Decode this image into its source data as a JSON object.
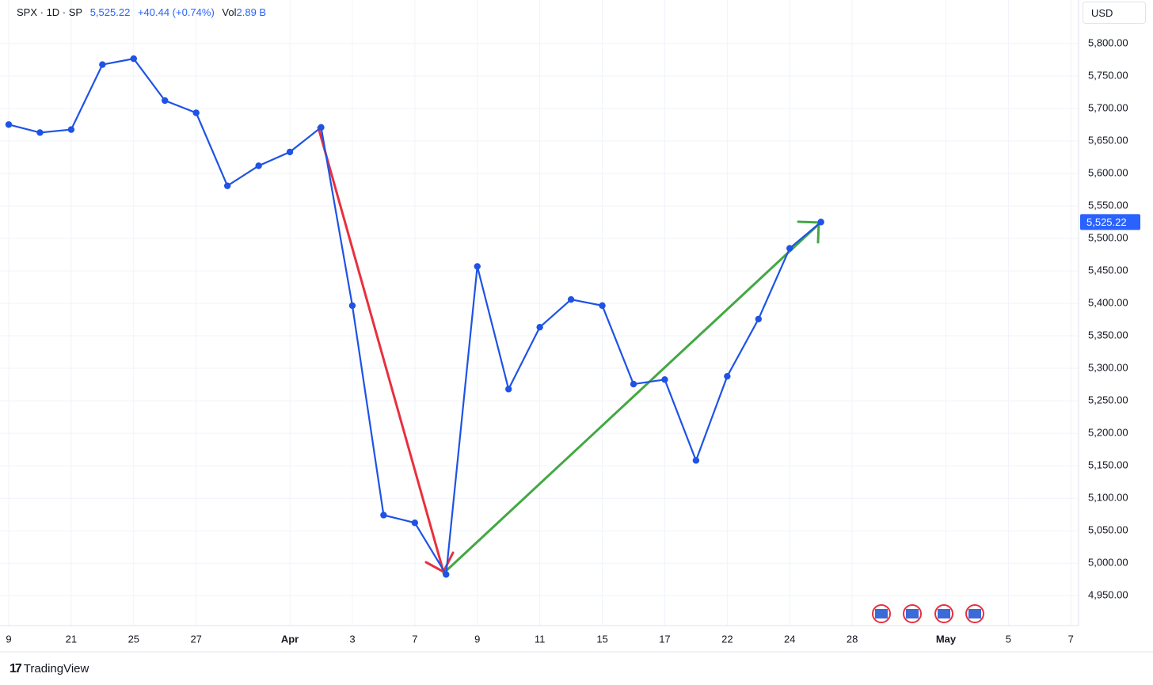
{
  "header": {
    "symbol": "SPX · 1D · SP",
    "price": "5,525.22",
    "change": "+40.44 (+0.74%)",
    "vol_label": "Vol",
    "vol": "2.89 B",
    "currency": "USD",
    "brand": "TradingView"
  },
  "chart_data": {
    "type": "line",
    "categories": [
      "9",
      null,
      "21",
      null,
      "25",
      null,
      "27",
      null,
      null,
      "Apr",
      null,
      "3",
      null,
      "7",
      null,
      "9",
      null,
      "11",
      null,
      "15",
      null,
      "17",
      null,
      "22",
      null,
      "24",
      null,
      "28",
      null,
      null,
      "May",
      null,
      "5",
      null,
      "7"
    ],
    "values": [
      5675.29,
      5662.89,
      5667.56,
      5767.57,
      5776.65,
      5712.2,
      5693.31,
      5580.94,
      5611.85,
      5633.07,
      5670.97,
      5396.52,
      5074.08,
      5062.25,
      4982.77,
      5456.9,
      5268.05,
      5363.36,
      5405.97,
      5396.63,
      5275.7,
      5282.7,
      5158.2,
      5287.76,
      5375.86,
      5484.77,
      5525.22,
      null,
      null,
      null,
      null,
      null,
      null,
      null,
      null
    ],
    "color": "#1e53e5",
    "last_price_label": "5,525.22",
    "ylim": [
      4904,
      5867
    ],
    "yticks": [
      {
        "value": 4950,
        "label": "4,950.00"
      },
      {
        "value": 5000,
        "label": "5,000.00"
      },
      {
        "value": 5050,
        "label": "5,050.00"
      },
      {
        "value": 5100,
        "label": "5,100.00"
      },
      {
        "value": 5150,
        "label": "5,150.00"
      },
      {
        "value": 5200,
        "label": "5,200.00"
      },
      {
        "value": 5250,
        "label": "5,250.00"
      },
      {
        "value": 5300,
        "label": "5,300.00"
      },
      {
        "value": 5350,
        "label": "5,350.00"
      },
      {
        "value": 5400,
        "label": "5,400.00"
      },
      {
        "value": 5450,
        "label": "5,450.00"
      },
      {
        "value": 5500,
        "label": "5,500.00"
      },
      {
        "value": 5550,
        "label": "5,550.00"
      },
      {
        "value": 5600,
        "label": "5,600.00"
      },
      {
        "value": 5650,
        "label": "5,650.00"
      },
      {
        "value": 5700,
        "label": "5,700.00"
      },
      {
        "value": 5750,
        "label": "5,750.00"
      },
      {
        "value": 5800,
        "label": "5,800.00"
      }
    ],
    "grid": true
  }
}
